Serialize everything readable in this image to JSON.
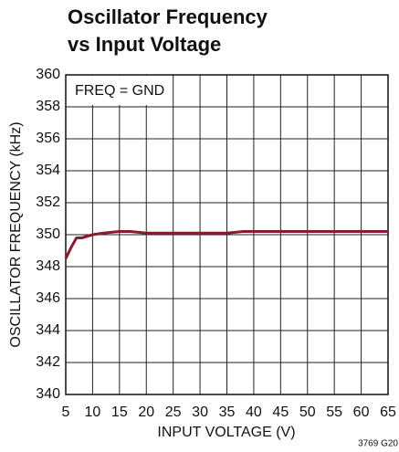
{
  "chart_data": {
    "type": "line",
    "title": [
      "Oscillator Frequency",
      "vs Input Voltage"
    ],
    "annotation": "FREQ = GND",
    "xlabel": "INPUT VOLTAGE (V)",
    "ylabel": "OSCILLATOR FREQUENCY (kHz)",
    "figure_id": "3769 G20",
    "x": [
      5,
      6,
      7,
      8,
      10,
      12,
      15,
      17,
      20,
      25,
      30,
      35,
      38,
      40,
      50,
      65
    ],
    "series": [
      {
        "name": "FREQ = GND",
        "color": "#8b1a2e",
        "values": [
          348.5,
          349.2,
          349.8,
          349.8,
          350.0,
          350.1,
          350.2,
          350.2,
          350.1,
          350.1,
          350.1,
          350.1,
          350.2,
          350.2,
          350.2,
          350.2
        ]
      }
    ],
    "xlim": [
      5,
      65
    ],
    "xticks": [
      5,
      10,
      15,
      20,
      25,
      30,
      35,
      40,
      45,
      50,
      55,
      60,
      65
    ],
    "ylim": [
      340,
      360
    ],
    "yticks": [
      340,
      342,
      344,
      346,
      348,
      350,
      352,
      354,
      356,
      358,
      360
    ],
    "grid": true
  }
}
